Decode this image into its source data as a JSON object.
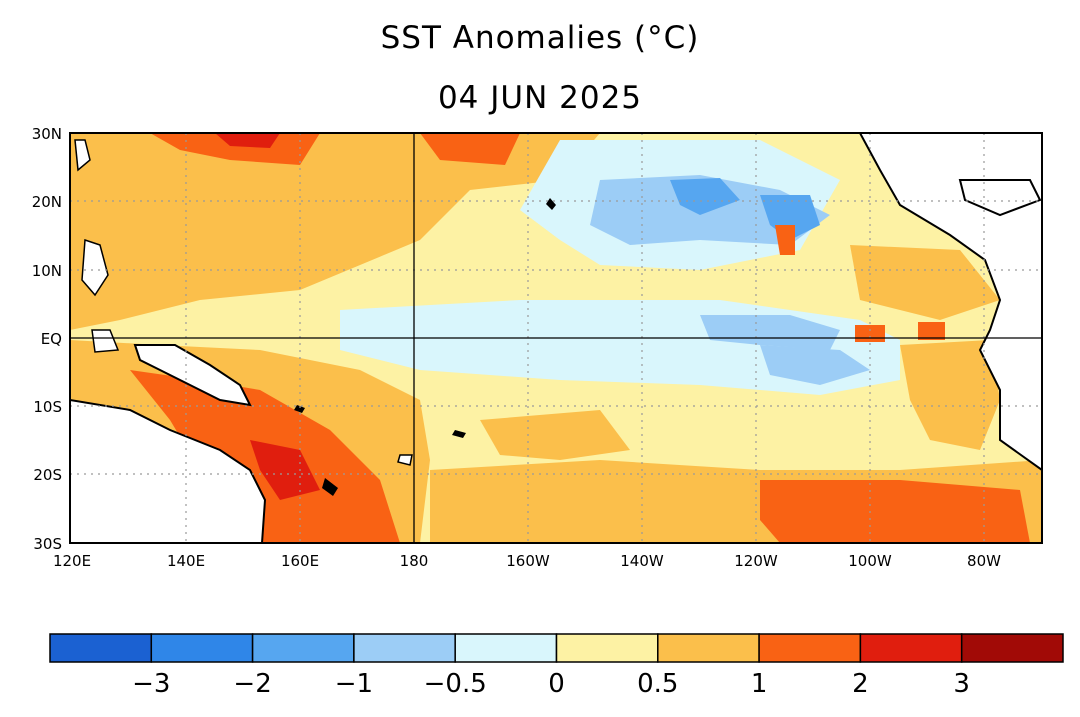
{
  "title": "SST Anomalies (°C)",
  "date": "04 JUN 2025",
  "map": {
    "lon_range": [
      "120E",
      "70W"
    ],
    "lat_range": [
      "30S",
      "30N"
    ],
    "lat_labels": [
      "30N",
      "20N",
      "10N",
      "EQ",
      "10S",
      "20S",
      "30S"
    ],
    "lon_labels": [
      "120E",
      "140E",
      "160E",
      "180",
      "160W",
      "140W",
      "120W",
      "100W",
      "80W"
    ],
    "gridlines": "dotted",
    "reference_lines": [
      "EQ",
      "180"
    ]
  },
  "colorbar": {
    "tick_labels": [
      "−3",
      "−2",
      "−1",
      "−0.5",
      "0",
      "0.5",
      "1",
      "2",
      "3"
    ],
    "colors": [
      "#1b61d2",
      "#2f86e8",
      "#56a6f0",
      "#9ccdf6",
      "#d9f6fc",
      "#fdf2a4",
      "#fbbf4b",
      "#f96214",
      "#e01e0e",
      "#a10a06"
    ]
  }
}
